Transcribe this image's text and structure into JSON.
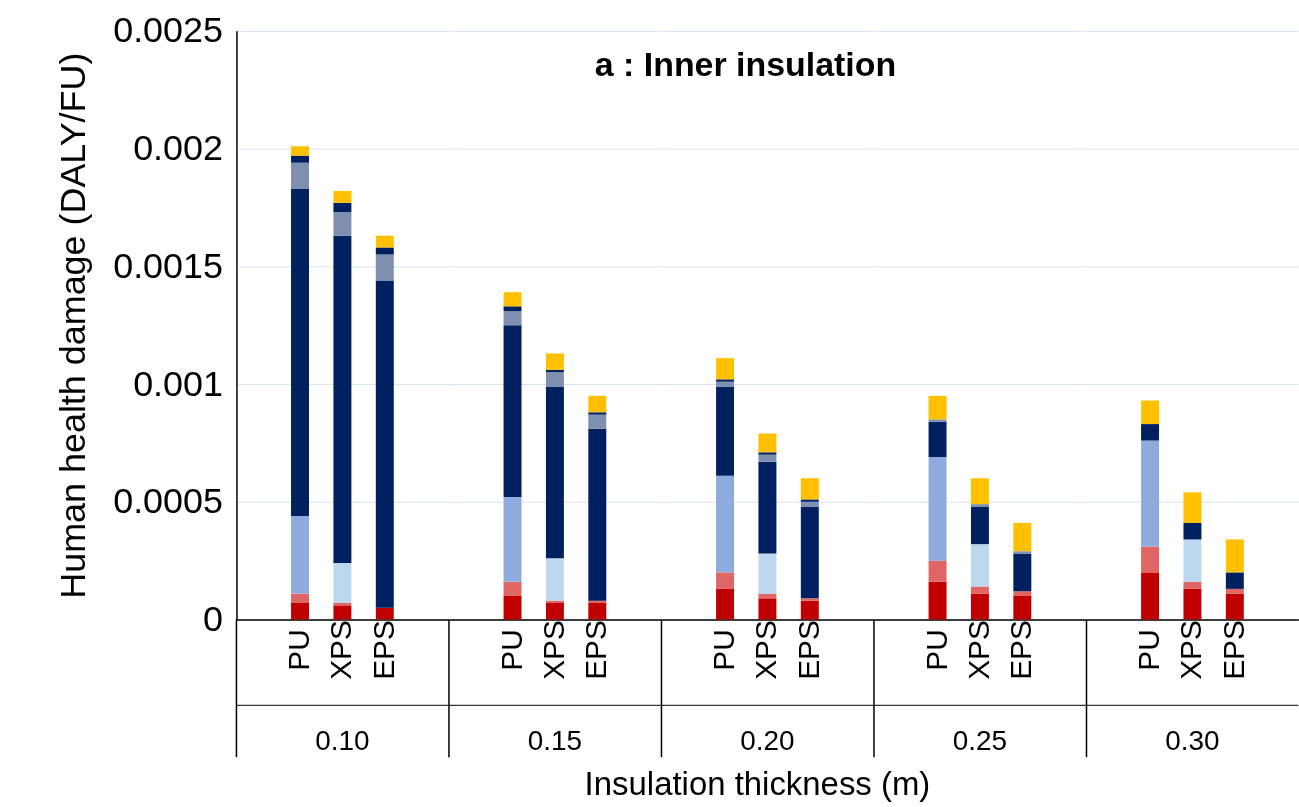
{
  "chart_data": [
    {
      "type": "bar",
      "stacked": true,
      "ylabel": "Human health damage (DALY/FU)",
      "categories": [
        "PU",
        "XPS",
        "EPS"
      ],
      "annotations": [
        "0.10"
      ],
      "series": [
        {
          "color": "#c00000",
          "values": [
            7e-05,
            6e-05,
            5e-05
          ]
        },
        {
          "color": "#e06666",
          "values": [
            4e-05,
            1e-05,
            0
          ]
        },
        {
          "color": "#8faadc",
          "values": [
            0.00033,
            null,
            null
          ]
        },
        {
          "color": "#bdd7ee",
          "values": [
            null,
            0.00017,
            null
          ]
        },
        {
          "color": "#002060",
          "values": [
            0.00139,
            0.00139,
            0.00139
          ]
        },
        {
          "color": "#7f8fb0",
          "values": [
            0.00011,
            0.0001,
            0.00011
          ]
        },
        {
          "color": "#002060",
          "values": [
            3e-05,
            4e-05,
            3e-05
          ]
        },
        {
          "color": "#ffc000",
          "values": [
            4e-05,
            5e-05,
            5e-05
          ]
        }
      ],
      "ylim": [
        0,
        0.0025
      ],
      "yticks": [
        0,
        0.0005,
        0.001,
        0.0015,
        0.002,
        0.0025
      ],
      "grid": "y",
      "legend": false
    },
    {
      "type": "bar",
      "stacked": true,
      "categories": [
        "PU",
        "XPS",
        "EPS"
      ],
      "annotations": [
        "0.15"
      ],
      "series": [
        {
          "color": "#c00000",
          "values": [
            0.0001,
            7e-05,
            7e-05
          ]
        },
        {
          "color": "#e06666",
          "values": [
            6e-05,
            1e-05,
            1e-05
          ]
        },
        {
          "color": "#8faadc",
          "values": [
            0.00036,
            null,
            null
          ]
        },
        {
          "color": "#bdd7ee",
          "values": [
            null,
            0.00018,
            null
          ]
        },
        {
          "color": "#002060",
          "values": [
            0.00073,
            0.00073,
            0.00073
          ]
        },
        {
          "color": "#7f8fb0",
          "values": [
            6e-05,
            6e-05,
            6e-05
          ]
        },
        {
          "color": "#002060",
          "values": [
            2e-05,
            1e-05,
            1e-05
          ]
        },
        {
          "color": "#ffc000",
          "values": [
            6e-05,
            7e-05,
            7e-05
          ]
        }
      ],
      "ylim": [
        0,
        0.0025
      ],
      "yticks": [
        0,
        0.0005,
        0.001,
        0.0015,
        0.002,
        0.0025
      ],
      "grid": "y",
      "legend": false,
      "tick_labels": "x"
    },
    {
      "type": "bar",
      "stacked": true,
      "title": "a : Inner insulation",
      "xlabel": "Insulation thickness (m)",
      "categories": [
        "PU",
        "XPS",
        "EPS"
      ],
      "annotations": [
        "0.20"
      ],
      "series": [
        {
          "color": "#c00000",
          "values": [
            0.00013,
            9e-05,
            8e-05
          ]
        },
        {
          "color": "#e06666",
          "values": [
            7e-05,
            2e-05,
            1e-05
          ]
        },
        {
          "color": "#8faadc",
          "values": [
            0.00041,
            null,
            null
          ]
        },
        {
          "color": "#bdd7ee",
          "values": [
            null,
            0.00017,
            null
          ]
        },
        {
          "color": "#002060",
          "values": [
            0.00038,
            0.00039,
            0.00039
          ]
        },
        {
          "color": "#7f8fb0",
          "values": [
            2e-05,
            3e-05,
            2e-05
          ]
        },
        {
          "color": "#002060",
          "values": [
            1e-05,
            1e-05,
            1e-05
          ]
        },
        {
          "color": "#ffc000",
          "values": [
            9e-05,
            8e-05,
            9e-05
          ]
        }
      ],
      "ylim": [
        0,
        0.0025
      ],
      "yticks": [
        0,
        0.0005,
        0.001,
        0.0015,
        0.002,
        0.0025
      ],
      "grid": "y",
      "legend": false,
      "tick_labels": "x"
    },
    {
      "type": "bar",
      "stacked": true,
      "categories": [
        "PU",
        "XPS",
        "EPS"
      ],
      "annotations": [
        "0.25"
      ],
      "series": [
        {
          "color": "#c00000",
          "values": [
            0.00016,
            0.00011,
            0.0001
          ]
        },
        {
          "color": "#e06666",
          "values": [
            9e-05,
            3e-05,
            2e-05
          ]
        },
        {
          "color": "#8faadc",
          "values": [
            0.00044,
            null,
            null
          ]
        },
        {
          "color": "#bdd7ee",
          "values": [
            null,
            0.00018,
            null
          ]
        },
        {
          "color": "#002060",
          "values": [
            0.00015,
            0.00016,
            0.00016
          ]
        },
        {
          "color": "#7f8fb0",
          "values": [
            1e-05,
            1e-05,
            1e-05
          ]
        },
        {
          "color": "#ffc000",
          "values": [
            0.0001,
            0.00011,
            0.00012
          ]
        }
      ],
      "ylim": [
        0,
        0.0025
      ],
      "yticks": [
        0,
        0.0005,
        0.001,
        0.0015,
        0.002,
        0.0025
      ],
      "grid": "y",
      "legend": false,
      "tick_labels": "x"
    },
    {
      "type": "bar",
      "stacked": true,
      "categories": [
        "PU",
        "XPS",
        "EPS"
      ],
      "annotations": [
        "0.30"
      ],
      "series": [
        {
          "color": "#c00000",
          "values": [
            0.0002,
            0.00013,
            0.00011
          ]
        },
        {
          "color": "#e06666",
          "values": [
            0.00011,
            3e-05,
            2e-05
          ]
        },
        {
          "color": "#8faadc",
          "values": [
            0.00045,
            null,
            null
          ]
        },
        {
          "color": "#bdd7ee",
          "values": [
            null,
            0.00018,
            null
          ]
        },
        {
          "color": "#002060",
          "values": [
            7e-05,
            7e-05,
            7e-05
          ]
        },
        {
          "color": "#ffc000",
          "values": [
            0.0001,
            0.00013,
            0.00014
          ]
        }
      ],
      "ylim": [
        0,
        0.0025
      ],
      "yticks": [
        0,
        0.0005,
        0.001,
        0.0015,
        0.002,
        0.0025
      ],
      "grid": "y",
      "legend": false,
      "tick_labels": "x"
    }
  ]
}
